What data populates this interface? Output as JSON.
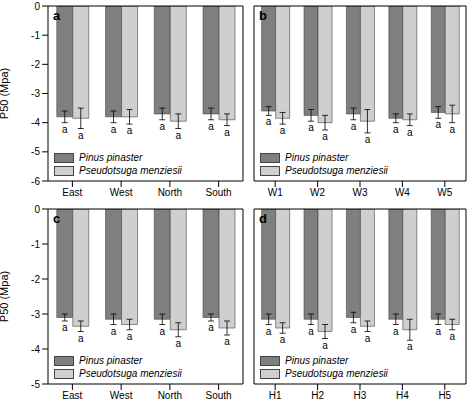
{
  "chart_data": [
    {
      "type": "bar",
      "title": "a",
      "y_label": "P50 (Mpa)",
      "categories": [
        "East",
        "West",
        "North",
        "South"
      ],
      "ylim": [
        -6,
        0
      ],
      "yticks": [
        0,
        -1,
        -2,
        -3,
        -4,
        -5,
        -6
      ],
      "legend": "lower left",
      "series": [
        {
          "name": "Pinus pinaster",
          "color": "#7f7f7f",
          "values": [
            -3.8,
            -3.8,
            -3.7,
            -3.7
          ],
          "errors": [
            0.2,
            0.2,
            0.2,
            0.2
          ],
          "annotations": [
            "a",
            "a",
            "a",
            "a"
          ]
        },
        {
          "name": "Pseudotsuga menziesii",
          "color": "#cfcfcf",
          "values": [
            -3.85,
            -3.8,
            -3.95,
            -3.9
          ],
          "errors": [
            0.35,
            0.25,
            0.25,
            0.2
          ],
          "annotations": [
            "a",
            "a",
            "a",
            "a"
          ]
        }
      ]
    },
    {
      "type": "bar",
      "title": "b",
      "categories": [
        "W1",
        "W2",
        "W3",
        "W4",
        "W5"
      ],
      "ylim": [
        -6,
        0
      ],
      "yticks": [
        0,
        -1,
        -2,
        -3,
        -4,
        -5,
        -6
      ],
      "legend": "lower left",
      "tick_labels": "x",
      "series": [
        {
          "name": "Pinus pinaster",
          "color": "#7f7f7f",
          "values": [
            -3.6,
            -3.75,
            -3.7,
            -3.85,
            -3.65
          ],
          "errors": [
            0.15,
            0.2,
            0.2,
            0.15,
            0.2
          ],
          "annotations": [
            "a",
            "a",
            "a",
            "a",
            "a"
          ]
        },
        {
          "name": "Pseudotsuga menziesii",
          "color": "#cfcfcf",
          "values": [
            -3.85,
            -4.0,
            -3.95,
            -3.9,
            -3.7
          ],
          "errors": [
            0.2,
            0.25,
            0.4,
            0.2,
            0.3
          ],
          "annotations": [
            "a",
            "a",
            "a",
            "a",
            "a"
          ]
        }
      ]
    },
    {
      "type": "bar",
      "title": "c",
      "y_label": "P50 (Mpa)",
      "categories": [
        "East",
        "West",
        "North",
        "South"
      ],
      "ylim": [
        -5,
        0
      ],
      "yticks": [
        0,
        -1,
        -2,
        -3,
        -4,
        -5
      ],
      "legend": "lower left",
      "series": [
        {
          "name": "Pinus pinaster",
          "color": "#7f7f7f",
          "values": [
            -3.1,
            -3.15,
            -3.15,
            -3.1
          ],
          "errors": [
            0.1,
            0.15,
            0.15,
            0.1
          ],
          "annotations": [
            "a",
            "a",
            "a",
            "a"
          ]
        },
        {
          "name": "Pseudotsuga menziesii",
          "color": "#cfcfcf",
          "values": [
            -3.35,
            -3.3,
            -3.45,
            -3.4
          ],
          "errors": [
            0.15,
            0.15,
            0.2,
            0.2
          ],
          "annotations": [
            "a",
            "a",
            "a",
            "a"
          ]
        }
      ]
    },
    {
      "type": "bar",
      "title": "d",
      "categories": [
        "H1",
        "H2",
        "H3",
        "H4",
        "H5"
      ],
      "ylim": [
        -5,
        0
      ],
      "yticks": [
        0,
        -1,
        -2,
        -3,
        -4,
        -5
      ],
      "legend": "lower left",
      "tick_labels": "x",
      "series": [
        {
          "name": "Pinus pinaster",
          "color": "#7f7f7f",
          "values": [
            -3.15,
            -3.15,
            -3.1,
            -3.15,
            -3.15
          ],
          "errors": [
            0.15,
            0.15,
            0.15,
            0.15,
            0.15
          ],
          "annotations": [
            "a",
            "a",
            "a",
            "a",
            "a"
          ]
        },
        {
          "name": "Pseudotsuga menziesii",
          "color": "#cfcfcf",
          "values": [
            -3.4,
            -3.5,
            -3.35,
            -3.45,
            -3.3
          ],
          "errors": [
            0.15,
            0.2,
            0.15,
            0.3,
            0.15
          ],
          "annotations": [
            "a",
            "a",
            "a",
            "a",
            "a"
          ]
        }
      ]
    }
  ]
}
